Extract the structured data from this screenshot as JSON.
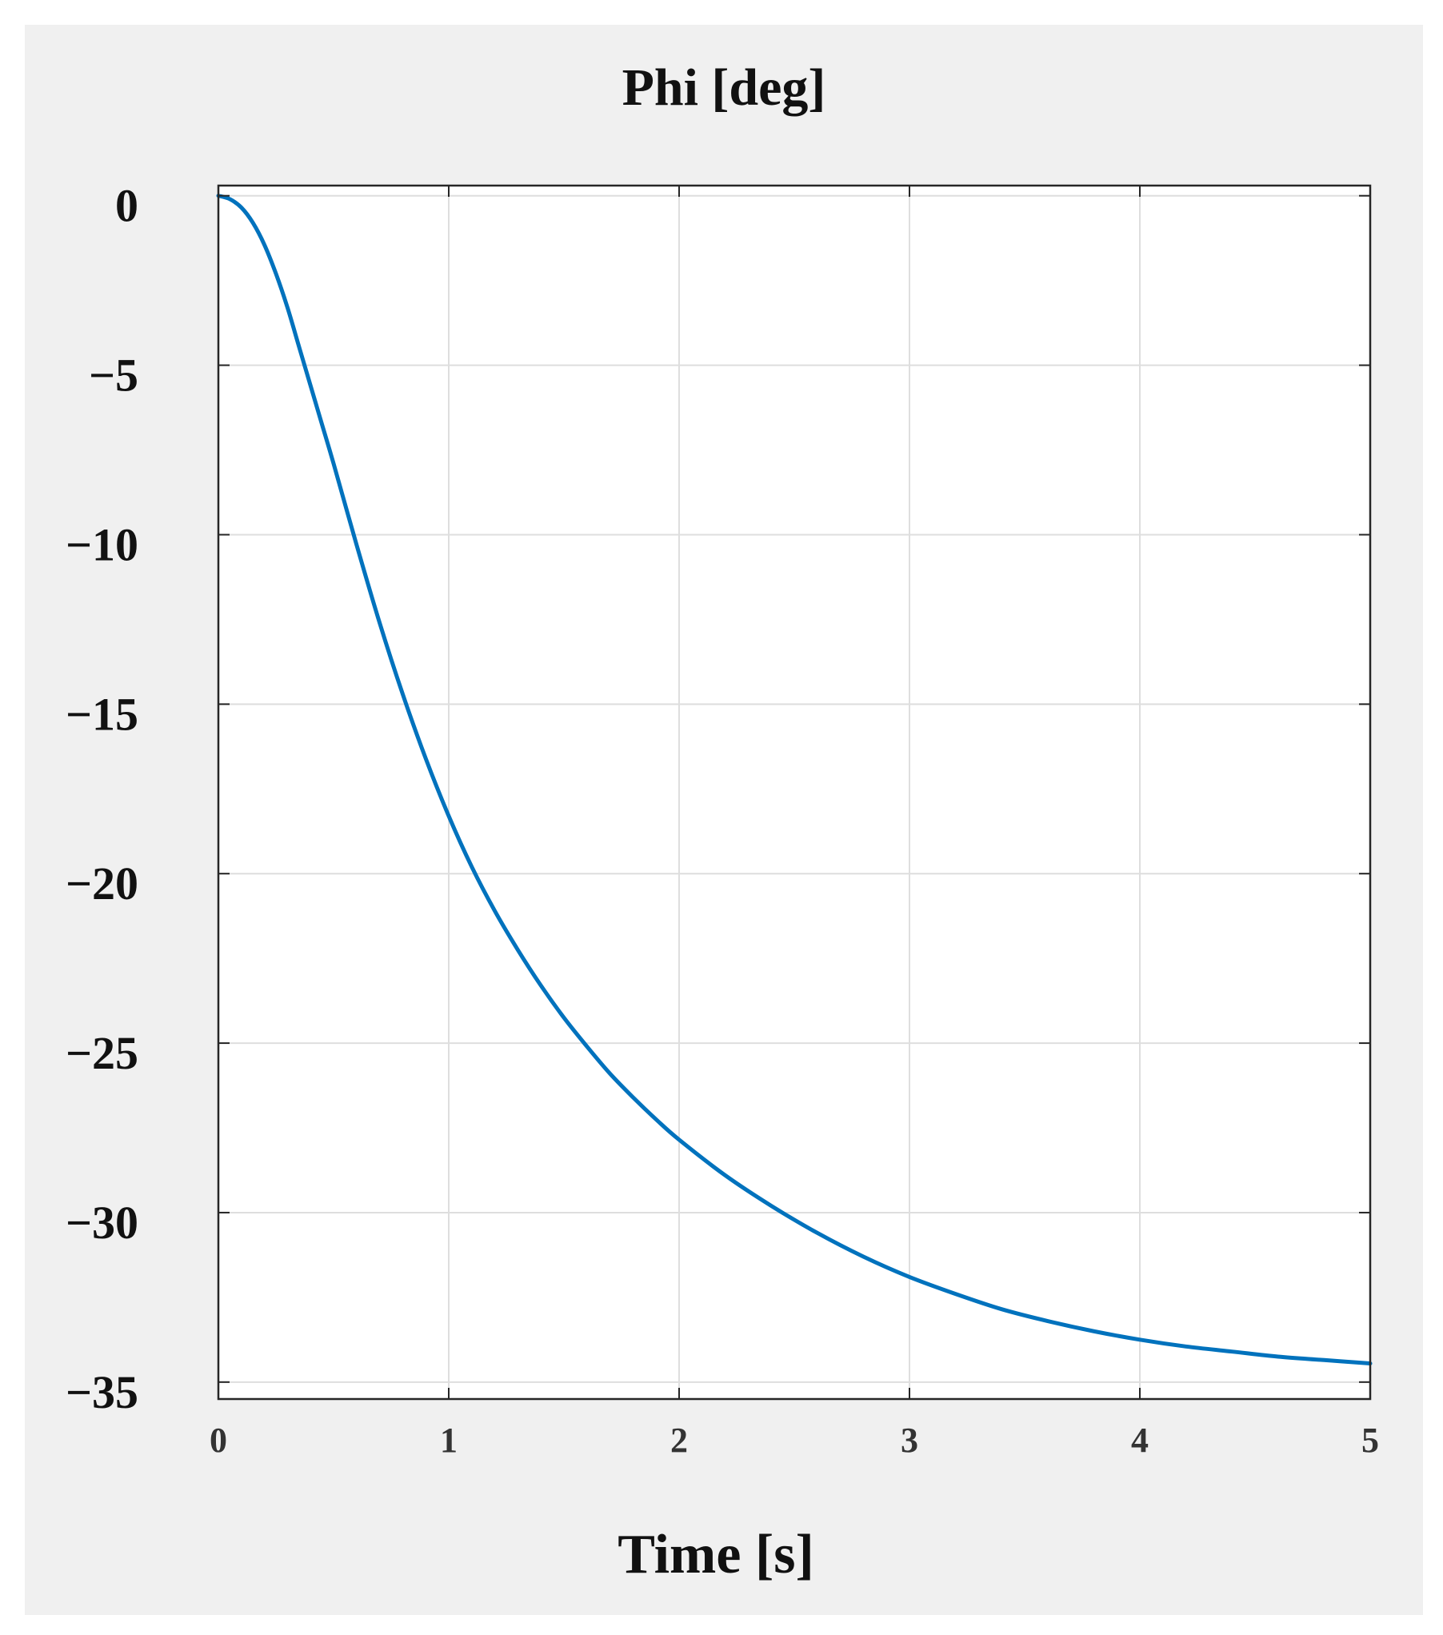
{
  "chart_data": {
    "type": "line",
    "title": "Phi [deg]",
    "xlabel": "Time [s]",
    "ylabel": "",
    "xlim": [
      0,
      5
    ],
    "ylim": [
      -35.5,
      0.3
    ],
    "xticks": [
      0,
      1,
      2,
      3,
      4,
      5
    ],
    "yticks": [
      0,
      -5,
      -10,
      -15,
      -20,
      -25,
      -30,
      -35
    ],
    "xtick_labels": [
      "0",
      "1",
      "2",
      "3",
      "4",
      "5"
    ],
    "ytick_labels": [
      "0",
      "−5",
      "−10",
      "−15",
      "−20",
      "−25",
      "−30",
      "−35"
    ],
    "grid": true,
    "legend": "none",
    "series": [
      {
        "color": "#0072bd",
        "x": [
          0,
          0.05,
          0.1,
          0.15,
          0.2,
          0.25,
          0.3,
          0.35,
          0.4,
          0.45,
          0.5,
          0.6,
          0.7,
          0.8,
          0.9,
          1.0,
          1.1,
          1.2,
          1.3,
          1.4,
          1.5,
          1.6,
          1.7,
          1.8,
          1.9,
          2.0,
          2.2,
          2.4,
          2.6,
          2.8,
          3.0,
          3.2,
          3.4,
          3.6,
          3.8,
          4.0,
          4.2,
          4.4,
          4.6,
          4.8,
          5.0
        ],
        "y": [
          0,
          -0.1,
          -0.35,
          -0.8,
          -1.45,
          -2.3,
          -3.3,
          -4.45,
          -5.6,
          -6.75,
          -7.9,
          -10.3,
          -12.6,
          -14.7,
          -16.6,
          -18.3,
          -19.8,
          -21.1,
          -22.25,
          -23.3,
          -24.25,
          -25.1,
          -25.9,
          -26.6,
          -27.25,
          -27.85,
          -28.9,
          -29.8,
          -30.6,
          -31.3,
          -31.9,
          -32.4,
          -32.85,
          -33.2,
          -33.5,
          -33.75,
          -33.95,
          -34.1,
          -34.25,
          -34.35,
          -34.45
        ]
      }
    ]
  }
}
